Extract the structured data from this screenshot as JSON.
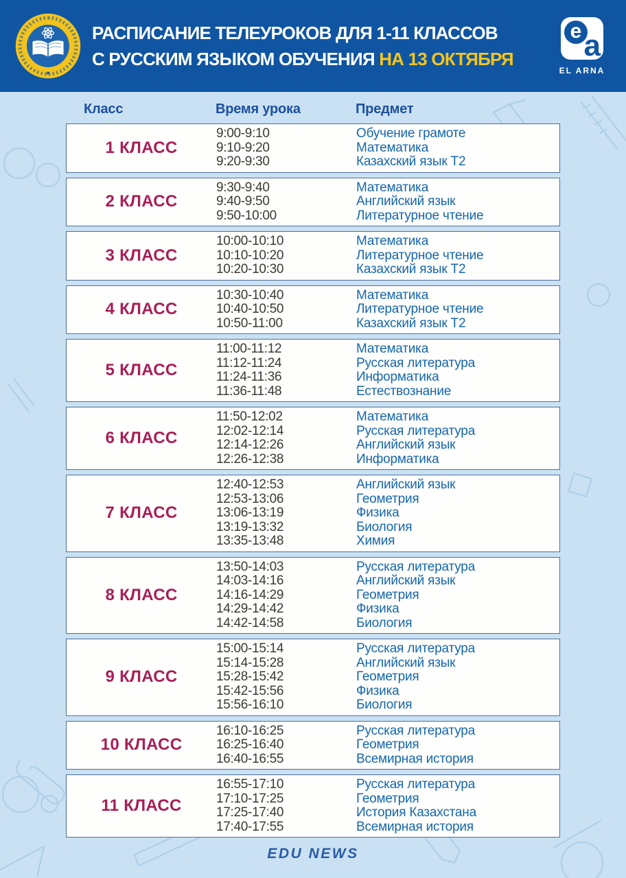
{
  "header": {
    "title_line1": "РАСПИСАНИЕ ТЕЛЕУРОКОВ ДЛЯ 1-11 КЛАССОВ",
    "title_line2_white": "С РУССКИМ ЯЗЫКОМ ОБУЧЕНИЯ ",
    "title_line2_accent": "НА 13 ОКТЯБРЯ",
    "logo": {
      "monogram_e": "e",
      "monogram_a": "a",
      "name": "EL ARNA"
    },
    "emblem_icon": "ministry-of-education-emblem-icon"
  },
  "table": {
    "columns": [
      "Класс",
      "Время урока",
      "Предмет"
    ],
    "rows": [
      {
        "class": "1 КЛАСС",
        "lessons": [
          {
            "time": "9:00-9:10",
            "subject": "Обучение грамоте"
          },
          {
            "time": "9:10-9:20",
            "subject": "Математика"
          },
          {
            "time": "9:20-9:30",
            "subject": "Казахский язык Т2"
          }
        ]
      },
      {
        "class": "2 КЛАСС",
        "lessons": [
          {
            "time": "9:30-9:40",
            "subject": "Математика"
          },
          {
            "time": "9:40-9:50",
            "subject": "Английский язык"
          },
          {
            "time": "9:50-10:00",
            "subject": "Литературное чтение"
          }
        ]
      },
      {
        "class": "3 КЛАСС",
        "lessons": [
          {
            "time": "10:00-10:10",
            "subject": "Математика"
          },
          {
            "time": "10:10-10:20",
            "subject": "Литературное чтение"
          },
          {
            "time": "10:20-10:30",
            "subject": "Казахский язык Т2"
          }
        ]
      },
      {
        "class": "4 КЛАСС",
        "lessons": [
          {
            "time": "10:30-10:40",
            "subject": "Математика"
          },
          {
            "time": "10:40-10:50",
            "subject": "Литературное чтение"
          },
          {
            "time": "10:50-11:00",
            "subject": "Казахский язык Т2"
          }
        ]
      },
      {
        "class": "5 КЛАСС",
        "lessons": [
          {
            "time": "11:00-11:12",
            "subject": "Математика"
          },
          {
            "time": "11:12-11:24",
            "subject": "Русская литература"
          },
          {
            "time": "11:24-11:36",
            "subject": "Информатика"
          },
          {
            "time": "11:36-11:48",
            "subject": "Естествознание"
          }
        ]
      },
      {
        "class": "6 КЛАСС",
        "lessons": [
          {
            "time": "11:50-12:02",
            "subject": "Математика"
          },
          {
            "time": "12:02-12:14",
            "subject": "Русская литература"
          },
          {
            "time": "12:14-12:26",
            "subject": "Английский язык"
          },
          {
            "time": "12:26-12:38",
            "subject": "Информатика"
          }
        ]
      },
      {
        "class": "7 КЛАСС",
        "lessons": [
          {
            "time": "12:40-12:53",
            "subject": "Английский язык"
          },
          {
            "time": "12:53-13:06",
            "subject": "Геометрия"
          },
          {
            "time": "13:06-13:19",
            "subject": "Физика"
          },
          {
            "time": "13:19-13:32",
            "subject": "Биология"
          },
          {
            "time": "13:35-13:48",
            "subject": "Химия"
          }
        ]
      },
      {
        "class": "8 КЛАСС",
        "lessons": [
          {
            "time": "13:50-14:03",
            "subject": "Русская литература"
          },
          {
            "time": "14:03-14:16",
            "subject": "Английский язык"
          },
          {
            "time": "14:16-14:29",
            "subject": "Геометрия"
          },
          {
            "time": "14:29-14:42",
            "subject": "Физика"
          },
          {
            "time": "14:42-14:58",
            "subject": "Биология"
          }
        ]
      },
      {
        "class": "9 КЛАСС",
        "lessons": [
          {
            "time": "15:00-15:14",
            "subject": "Русская литература"
          },
          {
            "time": "15:14-15:28",
            "subject": "Английский язык"
          },
          {
            "time": "15:28-15:42",
            "subject": "Геометрия"
          },
          {
            "time": "15:42-15:56",
            "subject": "Физика"
          },
          {
            "time": "15:56-16:10",
            "subject": "Биология"
          }
        ]
      },
      {
        "class": "10 КЛАСС",
        "lessons": [
          {
            "time": "16:10-16:25",
            "subject": "Русская литература"
          },
          {
            "time": "16:25-16:40",
            "subject": "Геометрия"
          },
          {
            "time": "16:40-16:55",
            "subject": "Всемирная история"
          }
        ]
      },
      {
        "class": "11 КЛАСС",
        "lessons": [
          {
            "time": "16:55-17:10",
            "subject": "Русская литература"
          },
          {
            "time": "17:10-17:25",
            "subject": "Геометрия"
          },
          {
            "time": "17:25-17:40",
            "subject": "История Казахстана"
          },
          {
            "time": "17:40-17:55",
            "subject": "Всемирная история"
          }
        ]
      }
    ]
  },
  "footer": {
    "text": "EDU NEWS"
  },
  "colors": {
    "page_bg": "#c9e1f2",
    "header_bg": "#0f55a2",
    "accent_yellow": "#f5c51b",
    "card_border": "#4d6f9d",
    "class_color": "#a81e56",
    "time_color": "#3a3933",
    "subject_color": "#1566ae",
    "col_header_color": "#1d4f9f",
    "footer_color": "#2a5aa8"
  }
}
